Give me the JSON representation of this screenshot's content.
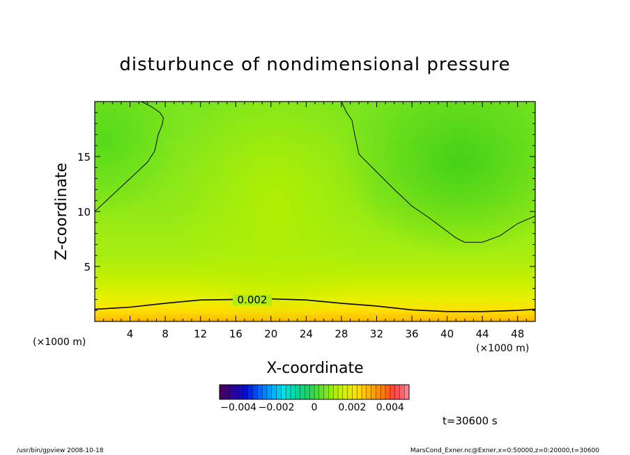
{
  "chart_data": {
    "type": "heatmap",
    "title": "disturbunce of nondimensional pressure",
    "xlabel": "X-coordinate",
    "ylabel": "Z-coordinate",
    "x_unit_left": "(×1000 m)",
    "x_unit_right": "(×1000 m)",
    "xlim": [
      0,
      50
    ],
    "ylim": [
      0,
      20
    ],
    "x_ticks": [
      4,
      8,
      12,
      16,
      20,
      24,
      28,
      32,
      36,
      40,
      44,
      48
    ],
    "y_ticks": [
      5,
      10,
      15
    ],
    "contour_label": "0.002",
    "contours": [
      {
        "name": "0.002 lower",
        "x": [
          0,
          4,
          8,
          12,
          16,
          20,
          24,
          28,
          32,
          36,
          40,
          44,
          48,
          50
        ],
        "y": [
          1.1,
          1.3,
          1.65,
          1.95,
          2.0,
          2.05,
          1.95,
          1.65,
          1.4,
          1.05,
          0.9,
          0.9,
          1.0,
          1.1
        ]
      },
      {
        "name": "upper-left",
        "x": [
          0,
          2,
          4,
          6,
          6.8,
          7.2,
          7.6,
          7.8,
          7.4,
          6.5,
          5.3
        ],
        "y": [
          10.0,
          11.5,
          13.0,
          14.5,
          15.5,
          17.0,
          17.8,
          18.5,
          19.0,
          19.5,
          20.0
        ]
      },
      {
        "name": "upper-right",
        "x": [
          28,
          28.6,
          29.2,
          29.5,
          30,
          32,
          34,
          36,
          38,
          40,
          41,
          42,
          44,
          46,
          48,
          50
        ],
        "y": [
          20.0,
          19.0,
          18.3,
          17.0,
          15.2,
          13.6,
          12.0,
          10.5,
          9.4,
          8.2,
          7.6,
          7.2,
          7.2,
          7.8,
          8.9,
          9.6
        ]
      }
    ],
    "colorbar": {
      "tick_labels": [
        "−0.004",
        "−0.002",
        "0",
        "0.002",
        "0.004"
      ],
      "tick_values": [
        -0.004,
        -0.002,
        0,
        0.002,
        0.004
      ],
      "range": [
        -0.005,
        0.005
      ],
      "colors": [
        "#4a0060",
        "#2a00a0",
        "#0010d8",
        "#0060ff",
        "#00a8ff",
        "#00e0e0",
        "#00d8a0",
        "#20d060",
        "#60e030",
        "#a0f000",
        "#d8f000",
        "#ffe000",
        "#ffb000",
        "#ff8000",
        "#ff4040",
        "#ff8090"
      ]
    },
    "time_label": "t=30600 s"
  },
  "footer": {
    "left": "/usr/bin/gpview   2008-10-18",
    "right": "MarsCond_Exner.nc@Exner,x=0:50000,z=0:20000,t=30600"
  }
}
